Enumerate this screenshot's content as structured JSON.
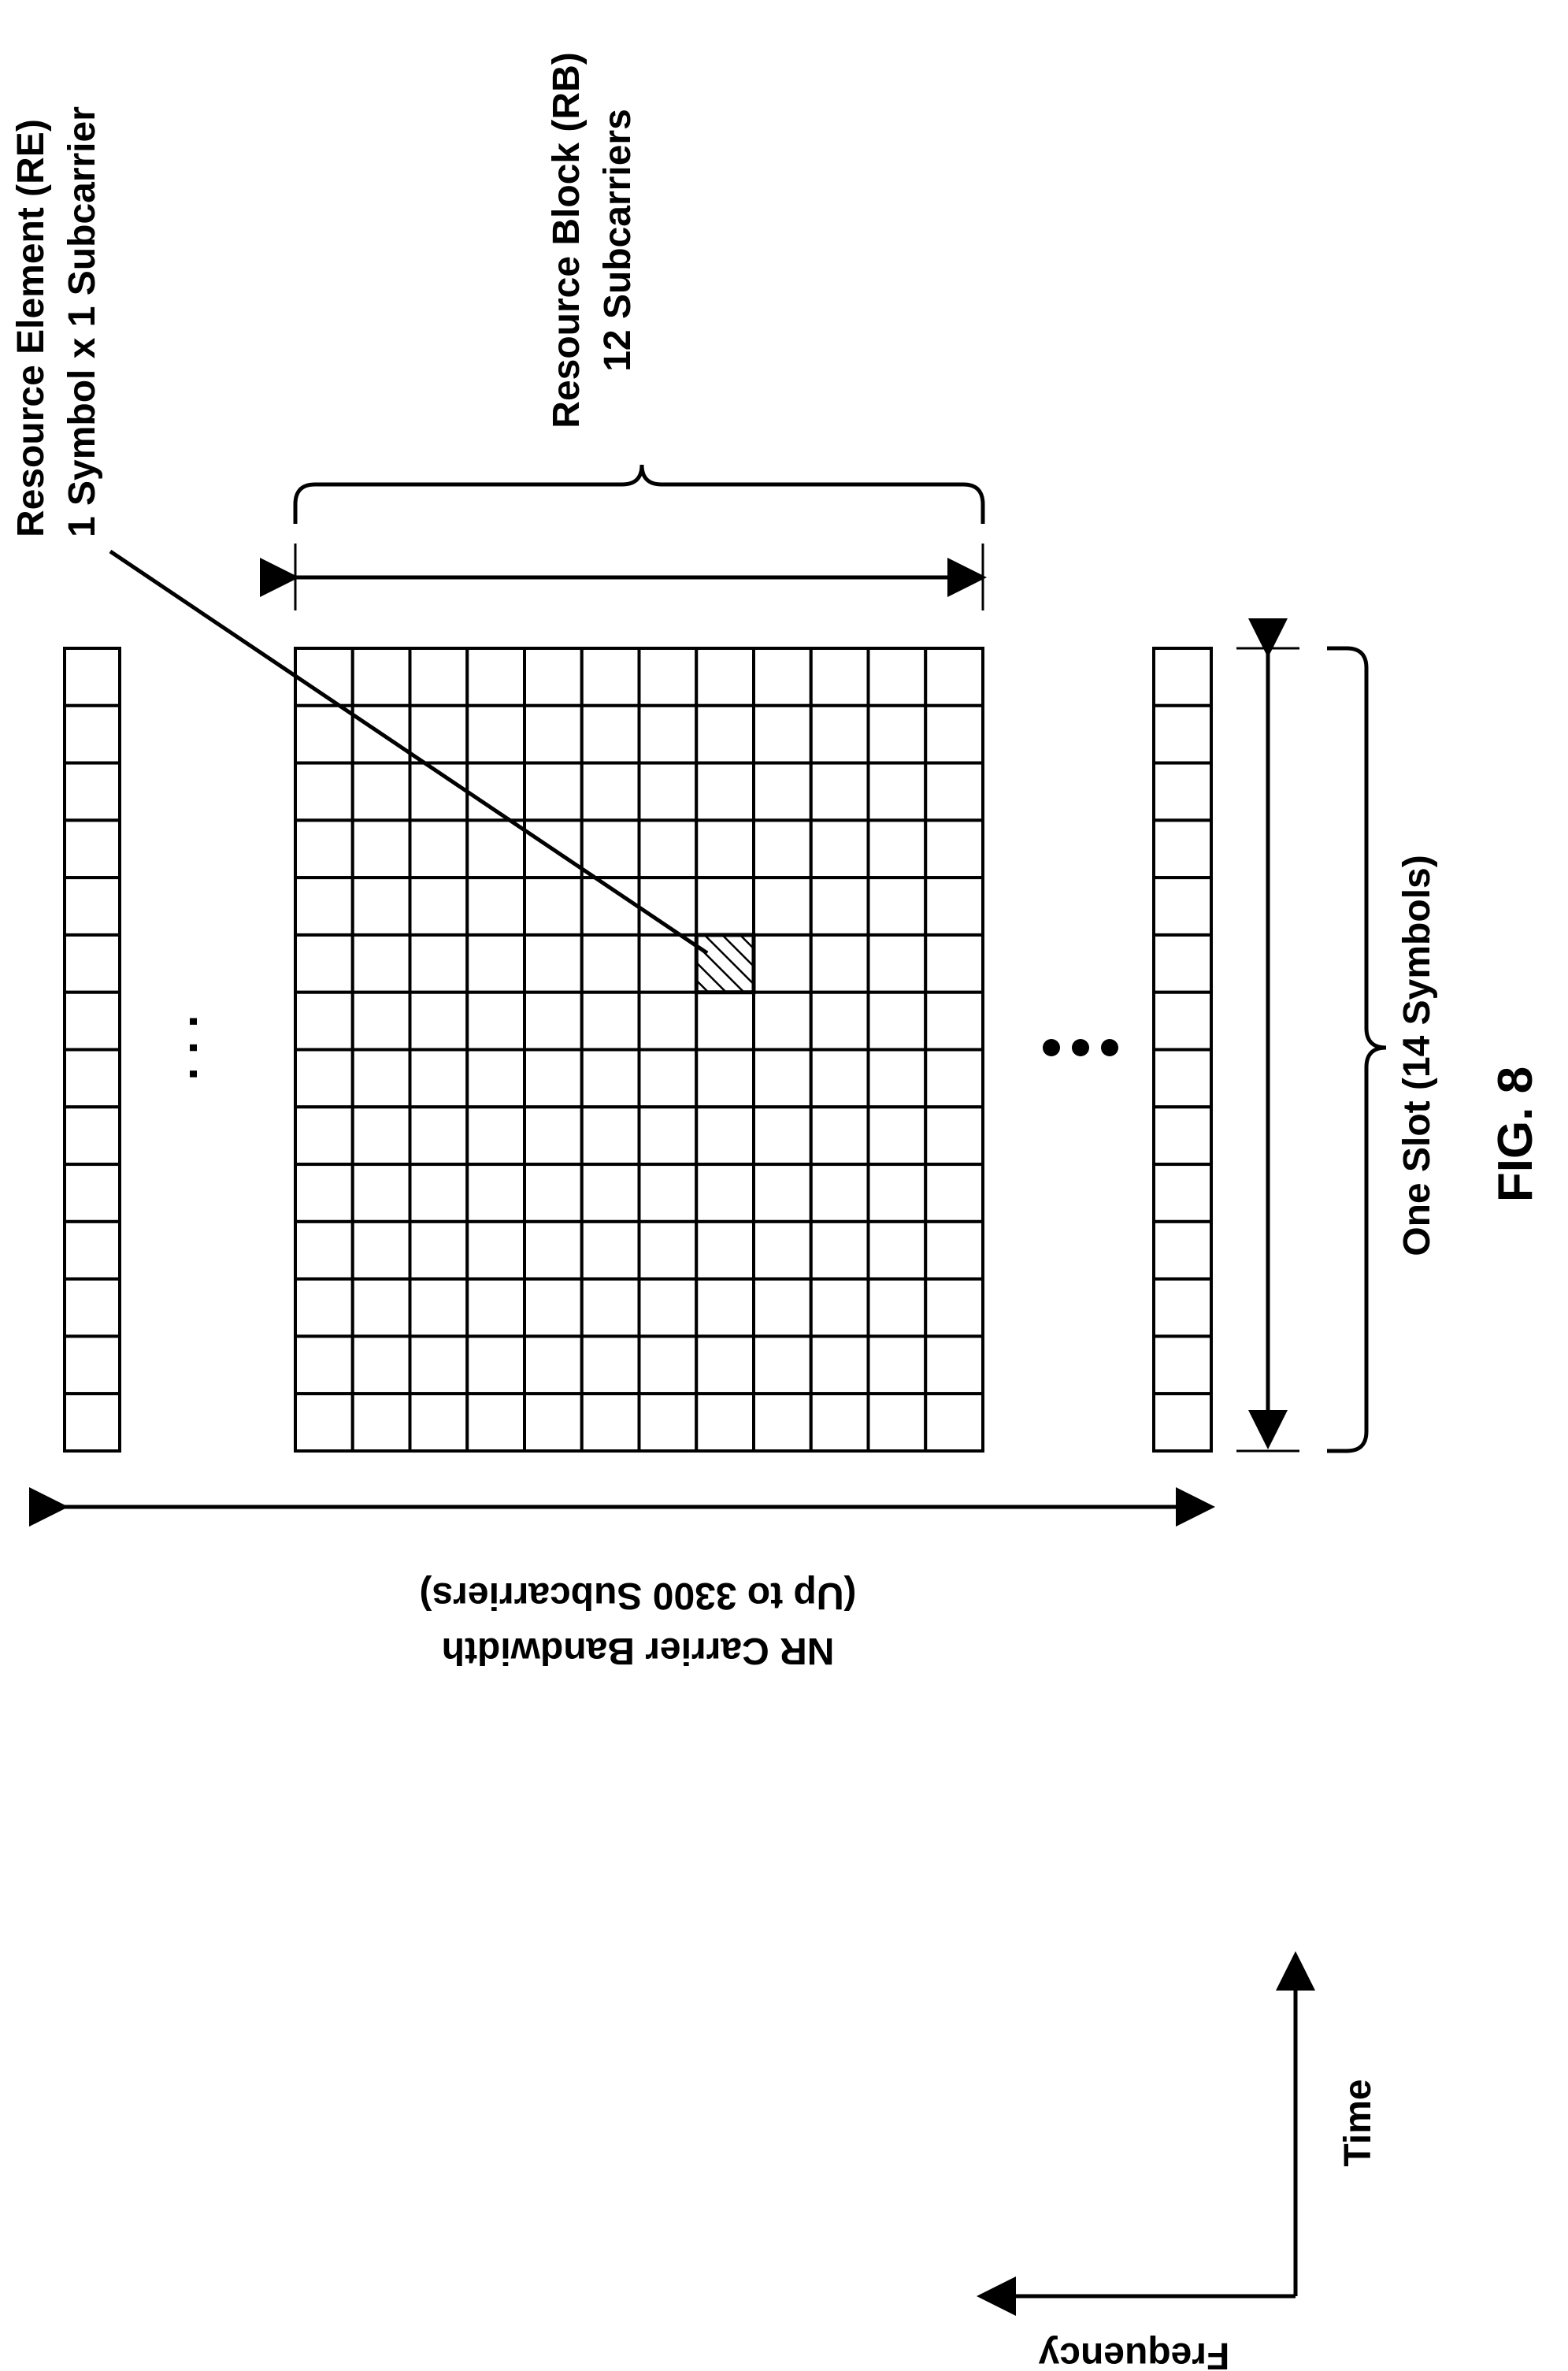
{
  "figure": {
    "label": "FIG. 8"
  },
  "labels": {
    "resource_element": {
      "line1": "Resource Element (RE)",
      "line2": "1 Symbol x 1 Subcarrier"
    },
    "resource_block": {
      "line1": "Resource Block (RB)",
      "line2": "12 Subcarriers"
    },
    "slot": "One Slot (14 Symbols)",
    "bandwidth": {
      "line1": "NR Carrier Bandwidth",
      "line2": "(Up to 3300 Subcarriers)"
    },
    "axes": {
      "time": "Time",
      "frequency": "Frequency"
    }
  },
  "grid": {
    "subcarriers_per_rb": 12,
    "symbols_per_slot": 14,
    "highlighted_symbol_index": 5,
    "highlighted_subcarrier_index": 7
  },
  "ellipsis": {
    "left": ". . .",
    "right": "•••"
  }
}
